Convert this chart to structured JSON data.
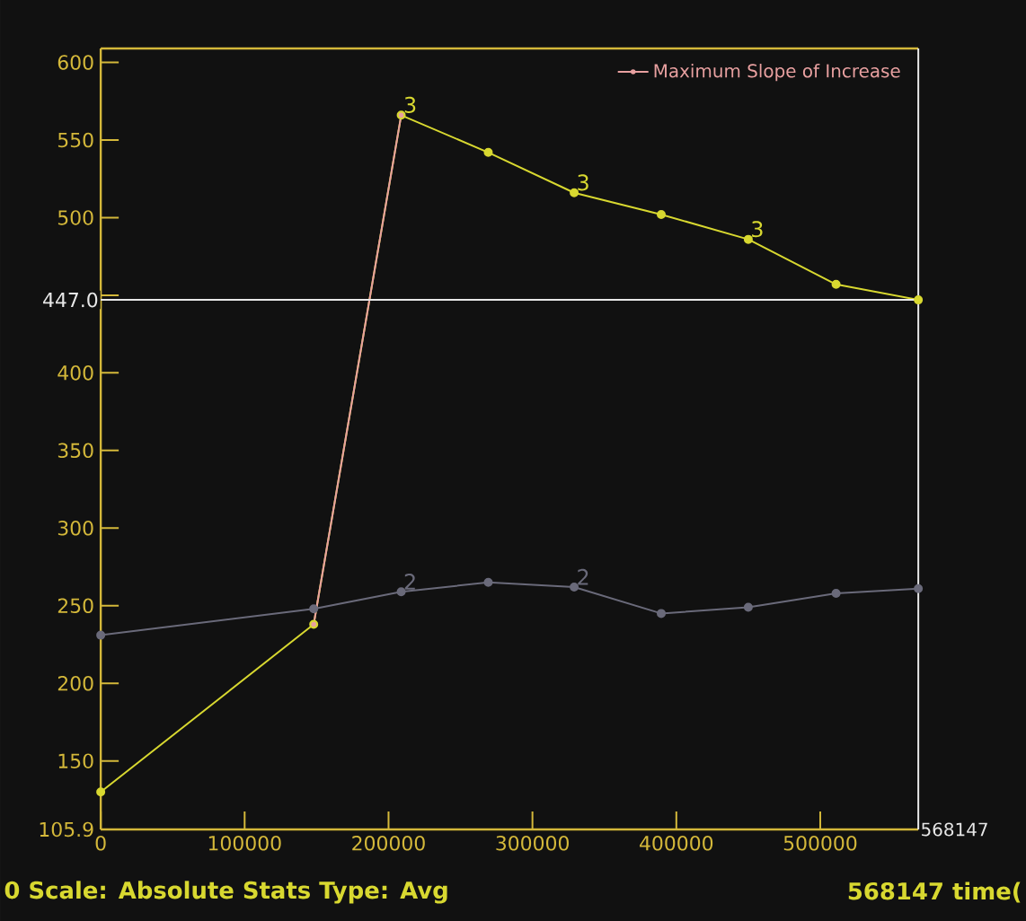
{
  "chart_data": {
    "type": "line",
    "x": [
      0,
      148000,
      208800,
      269300,
      329000,
      389500,
      450000,
      511000,
      568147
    ],
    "series": [
      {
        "color": "#d8d830",
        "values": [
          130,
          238,
          566,
          542,
          516,
          502,
          486,
          457,
          447
        ]
      },
      {
        "color": "#6a6a7a",
        "values": [
          231,
          248,
          259,
          265,
          262,
          245,
          249,
          258,
          261
        ]
      },
      {
        "name": "Maximum Slope of Increase",
        "color": "#e8a0a0",
        "x": [
          148000,
          208800
        ],
        "values": [
          238,
          566
        ]
      }
    ],
    "xlim": [
      0,
      568147
    ],
    "ylim": [
      105.9,
      609
    ],
    "xticks": [
      0,
      100000,
      200000,
      300000,
      400000,
      500000
    ],
    "yticks": [
      {
        "value": 105.9,
        "label": "105.9"
      },
      150,
      200,
      250,
      300,
      350,
      400,
      {
        "value": 450,
        "label": null
      },
      500,
      550,
      600
    ],
    "marker": "circle",
    "legend": "top right",
    "grid": false,
    "ref_lines": [
      {
        "axis": "y",
        "value": 447.0,
        "label": "447.0",
        "color": "#e8e8e8"
      },
      {
        "axis": "x",
        "value": 568147,
        "label": "568147",
        "color": "#e8e8e8"
      }
    ],
    "annotations": [
      {
        "text": "3",
        "x": 208800,
        "y": 566
      },
      {
        "text": "3",
        "x": 329000,
        "y": 516
      },
      {
        "text": "3",
        "x": 450000,
        "y": 486
      },
      {
        "text": "2",
        "x": 208800,
        "y": 259
      },
      {
        "text": "2",
        "x": 329000,
        "y": 262
      },
      "0 Scale: Absolute Stats Type: Avg",
      "568147 time("
    ]
  }
}
